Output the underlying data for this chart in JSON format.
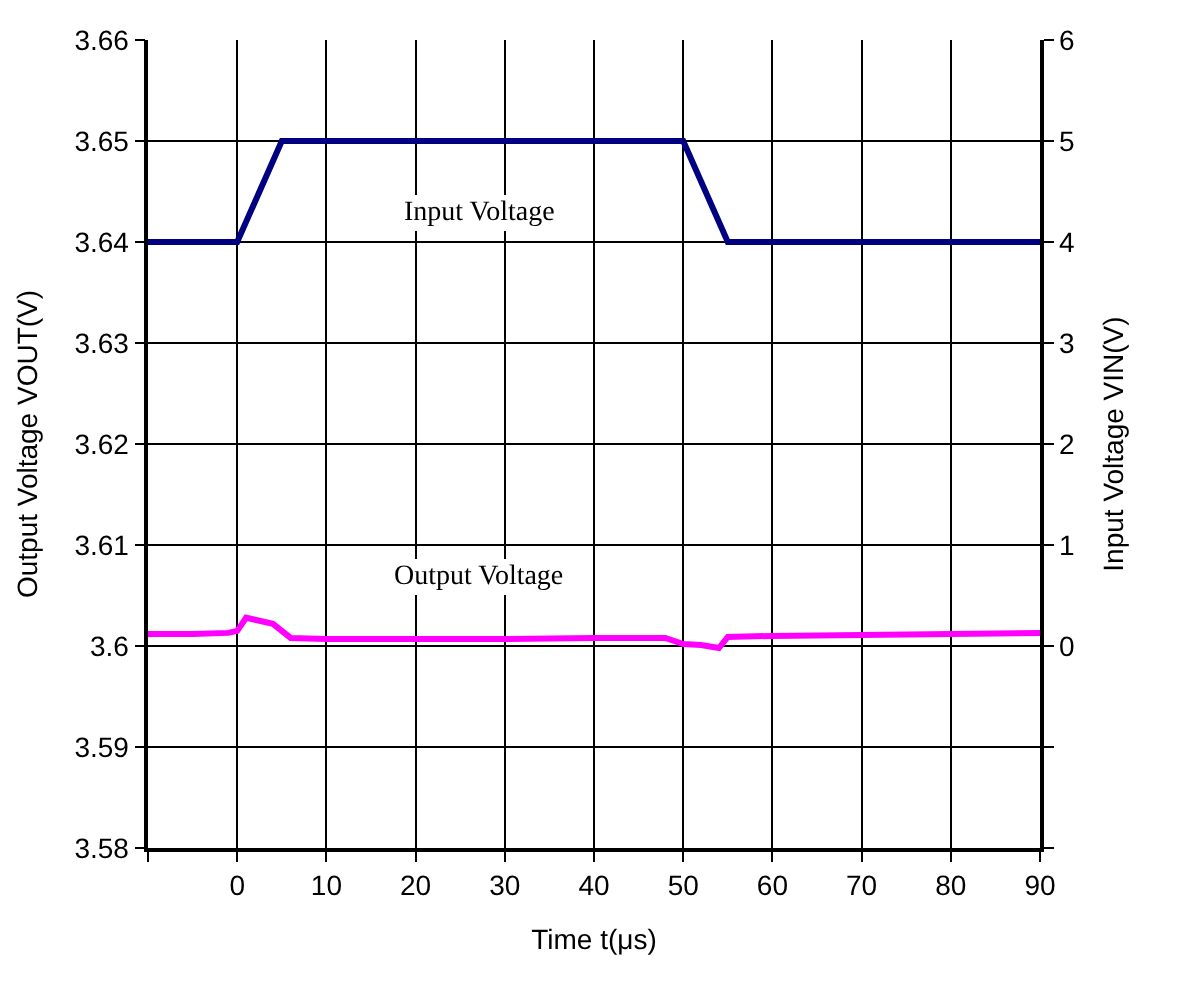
{
  "chart_data": {
    "type": "line",
    "xlabel": "Time t(μs)",
    "ylabel": "Output Voltage VOUT(V)",
    "y2label": "Input Voltage VIN(V)",
    "xlim": [
      -10,
      90
    ],
    "xticks": [
      {
        "value": -10,
        "label": null
      },
      0,
      10,
      20,
      30,
      40,
      50,
      60,
      70,
      80,
      90
    ],
    "ylim": [
      3.58,
      3.66
    ],
    "yticks": [
      3.58,
      3.59,
      3.6,
      3.61,
      3.62,
      3.63,
      3.64,
      3.65,
      3.66
    ],
    "y2lim": [
      -2,
      6
    ],
    "y2ticks": [
      {
        "value": -2,
        "label": null
      },
      {
        "value": -1,
        "label": null
      },
      0,
      1,
      2,
      3,
      4,
      5,
      6
    ],
    "grid": true,
    "marker": "none",
    "line_style": "solid",
    "series": [
      {
        "color": "#000080",
        "axis": "y2",
        "x": [
          -10,
          0,
          5,
          50,
          55,
          90
        ],
        "values": [
          4,
          4,
          5,
          5,
          4,
          4
        ]
      },
      {
        "color": "#ff00ff",
        "x": [
          -10,
          -5,
          -1,
          0,
          1,
          2,
          4,
          6,
          10,
          20,
          30,
          40,
          48,
          50,
          52,
          54,
          55,
          60,
          70,
          80,
          90
        ],
        "values": [
          3.6012,
          3.6012,
          3.6013,
          3.6015,
          3.6028,
          3.6026,
          3.6022,
          3.6008,
          3.6007,
          3.6007,
          3.6007,
          3.6008,
          3.6008,
          3.6002,
          3.6001,
          3.5998,
          3.6009,
          3.601,
          3.6011,
          3.6012,
          3.6013
        ]
      }
    ],
    "annotations": [
      "Input Voltage",
      "Output Voltage"
    ]
  }
}
